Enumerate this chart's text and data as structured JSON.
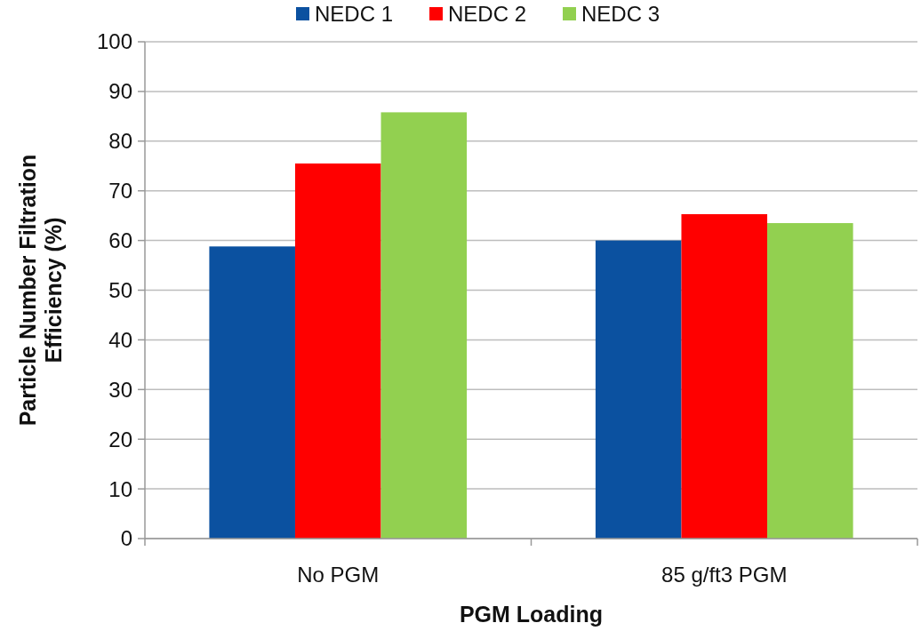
{
  "chart_data": {
    "type": "bar",
    "xlabel": "PGM Loading",
    "ylabel": "Particle Number Filtration Efficiency (%)",
    "categories": [
      "No PGM",
      "85 g/ft3 PGM"
    ],
    "series": [
      {
        "name": "NEDC 1",
        "color": "#0b51a0",
        "values": [
          58.8,
          60
        ]
      },
      {
        "name": "NEDC 2",
        "color": "#ff0000",
        "values": [
          75.5,
          65.3
        ]
      },
      {
        "name": "NEDC 3",
        "color": "#92d050",
        "values": [
          85.8,
          63.5
        ]
      }
    ],
    "ylim": [
      0,
      100
    ],
    "yticks": [
      0,
      10,
      20,
      30,
      40,
      50,
      60,
      70,
      80,
      90,
      100
    ],
    "grid": "y",
    "legend": "top"
  }
}
